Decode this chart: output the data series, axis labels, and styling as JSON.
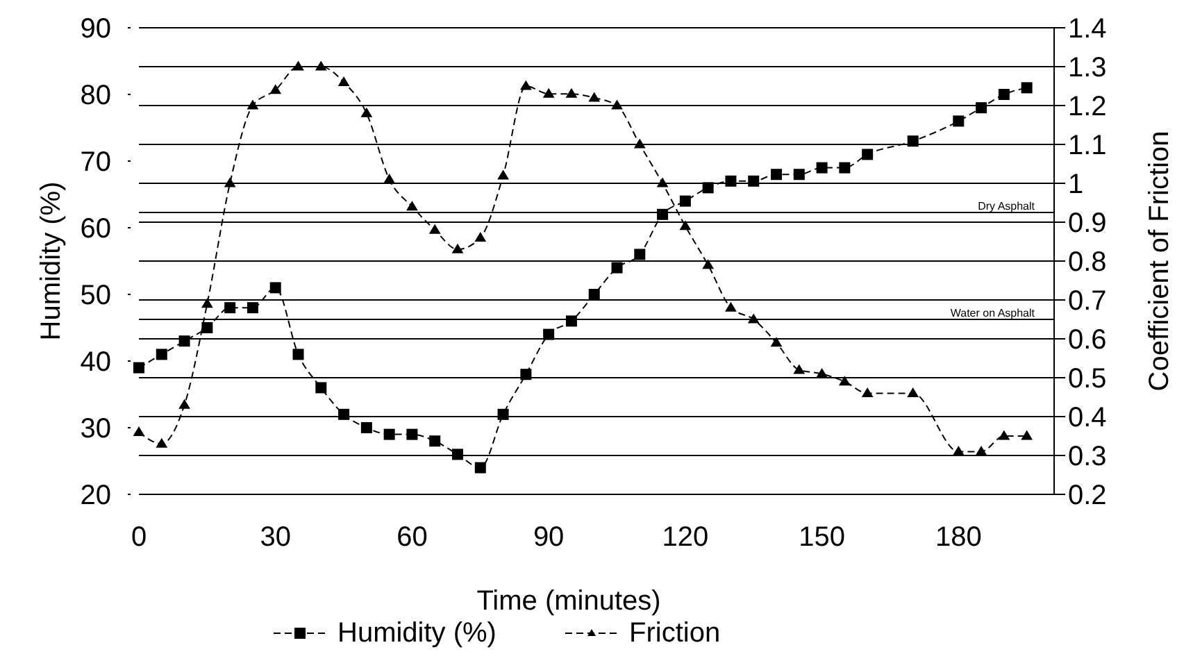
{
  "chart_data": {
    "type": "line",
    "xlabel": "Time (minutes)",
    "ylabel": "Humidity (%)",
    "y2label": "Coefficient of Friction",
    "xlim": [
      0,
      201
    ],
    "xticks": [
      0,
      30,
      60,
      90,
      120,
      150,
      180
    ],
    "ylim": [
      20,
      90
    ],
    "yticks": [
      20,
      30,
      40,
      50,
      60,
      70,
      80,
      90
    ],
    "y2lim": [
      0.2,
      1.4
    ],
    "y2ticks": [
      {
        "value": 0.2,
        "label": "0.2"
      },
      {
        "value": 0.3,
        "label": "0.3"
      },
      {
        "value": 0.4,
        "label": "0.4"
      },
      {
        "value": 0.5,
        "label": "0.5"
      },
      {
        "value": 0.6,
        "label": "0.6"
      },
      {
        "value": 0.7,
        "label": "0.7"
      },
      {
        "value": 0.8,
        "label": "0.8"
      },
      {
        "value": 0.9,
        "label": "0.9"
      },
      {
        "value": 1,
        "label": "1"
      },
      {
        "value": 1.1,
        "label": "1.1"
      },
      {
        "value": 1.2,
        "label": "1.2"
      },
      {
        "value": 1.3,
        "label": "1.3"
      },
      {
        "value": 1.4,
        "label": "1.4"
      }
    ],
    "grid": "y2",
    "legend": "bottom",
    "line_style": "dashed",
    "ref_lines": [
      {
        "axis": "y2",
        "value": 0.925,
        "label": "Dry Asphalt",
        "color": "#000000"
      },
      {
        "axis": "y2",
        "value": 0.65,
        "label": "Water on Asphalt",
        "color": "#000000"
      }
    ],
    "series": [
      {
        "name": "Humidity (%)",
        "color": "#000000",
        "marker": "square",
        "x": [
          0,
          5,
          10,
          15,
          20,
          25,
          30,
          35,
          40,
          45,
          50,
          55,
          60,
          65,
          70,
          75,
          80,
          85,
          90,
          95,
          100,
          105,
          110,
          115,
          120,
          125,
          130,
          135,
          140,
          145,
          150,
          155,
          160,
          170,
          180,
          185,
          190,
          195
        ],
        "values": [
          39,
          41,
          43,
          45,
          48,
          48,
          51,
          41,
          36,
          32,
          30,
          29,
          29,
          28,
          26,
          24,
          32,
          38,
          44,
          46,
          50,
          54,
          56,
          62,
          64,
          66,
          67,
          67,
          68,
          68,
          69,
          69,
          71,
          73,
          76,
          78,
          80,
          81
        ]
      },
      {
        "name": "Friction",
        "color": "#000000",
        "marker": "triangle",
        "axis": "y2",
        "x": [
          0,
          5,
          10,
          15,
          20,
          25,
          30,
          35,
          40,
          45,
          50,
          55,
          60,
          65,
          70,
          75,
          80,
          85,
          90,
          95,
          100,
          105,
          110,
          115,
          120,
          125,
          130,
          135,
          140,
          145,
          150,
          155,
          160,
          170,
          180,
          185,
          190,
          195
        ],
        "values": [
          0.36,
          0.33,
          0.43,
          0.69,
          1.0,
          1.2,
          1.24,
          1.3,
          1.3,
          1.26,
          1.18,
          1.01,
          0.94,
          0.88,
          0.83,
          0.86,
          1.02,
          1.25,
          1.23,
          1.23,
          1.22,
          1.2,
          1.1,
          1.0,
          0.89,
          0.79,
          0.68,
          0.65,
          0.59,
          0.52,
          0.51,
          0.49,
          0.46,
          0.46,
          0.31,
          0.31,
          0.35,
          0.35
        ]
      }
    ]
  }
}
